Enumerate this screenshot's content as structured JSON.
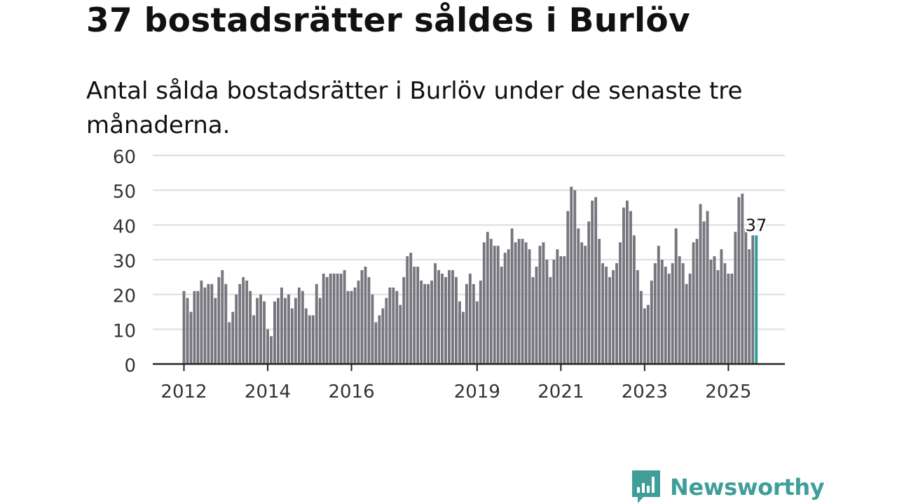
{
  "title": "37 bostadsrätter såldes i Burlöv",
  "subtitle": "Antal sålda bostadsrätter i Burlöv under de senaste tre månaderna.",
  "brand": "Newsworthy",
  "chart_data": {
    "type": "bar",
    "title": "37 bostadsrätter såldes i Burlöv",
    "subtitle": "Antal sålda bostadsrätter i Burlöv under de senaste tre månaderna.",
    "xlabel": "",
    "ylabel": "",
    "ylim": [
      0,
      60
    ],
    "yticks": [
      0,
      10,
      20,
      30,
      40,
      50,
      60
    ],
    "xticks": [
      {
        "label": "2012",
        "index": 0
      },
      {
        "label": "2014",
        "index": 24
      },
      {
        "label": "2016",
        "index": 48
      },
      {
        "label": "2019",
        "index": 84
      },
      {
        "label": "2021",
        "index": 108
      },
      {
        "label": "2023",
        "index": 132
      },
      {
        "label": "2025",
        "index": 156
      }
    ],
    "series_start": "2012-01",
    "frequency": "monthly",
    "values": [
      21,
      19,
      15,
      21,
      21,
      24,
      22,
      23,
      23,
      19,
      25,
      27,
      23,
      12,
      15,
      20,
      23,
      25,
      24,
      21,
      14,
      19,
      20,
      18,
      10,
      8,
      18,
      19,
      22,
      19,
      20,
      16,
      19,
      22,
      21,
      16,
      14,
      14,
      23,
      19,
      26,
      25,
      26,
      26,
      26,
      26,
      27,
      21,
      21,
      22,
      24,
      27,
      28,
      25,
      20,
      12,
      14,
      16,
      19,
      22,
      22,
      21,
      17,
      25,
      31,
      32,
      28,
      28,
      24,
      23,
      23,
      24,
      29,
      27,
      26,
      25,
      27,
      27,
      25,
      18,
      15,
      23,
      26,
      23,
      18,
      24,
      35,
      38,
      36,
      34,
      34,
      28,
      32,
      33,
      39,
      35,
      36,
      36,
      35,
      33,
      25,
      28,
      34,
      35,
      30,
      25,
      30,
      33,
      31,
      31,
      44,
      51,
      50,
      39,
      35,
      34,
      41,
      47,
      48,
      36,
      29,
      28,
      25,
      27,
      29,
      35,
      45,
      47,
      44,
      37,
      27,
      21,
      16,
      17,
      24,
      29,
      34,
      30,
      28,
      26,
      29,
      39,
      31,
      29,
      23,
      26,
      35,
      36,
      46,
      41,
      44,
      30,
      31,
      27,
      33,
      29,
      26,
      26,
      38,
      48,
      49,
      39,
      33,
      37,
      37
    ],
    "highlight": {
      "index": 164,
      "value": 37,
      "label": "37"
    },
    "colors": {
      "bar": "#76767e",
      "highlight": "#2aa198",
      "grid": "#dddddd",
      "axis": "#222222",
      "tick_text": "#333333"
    }
  }
}
